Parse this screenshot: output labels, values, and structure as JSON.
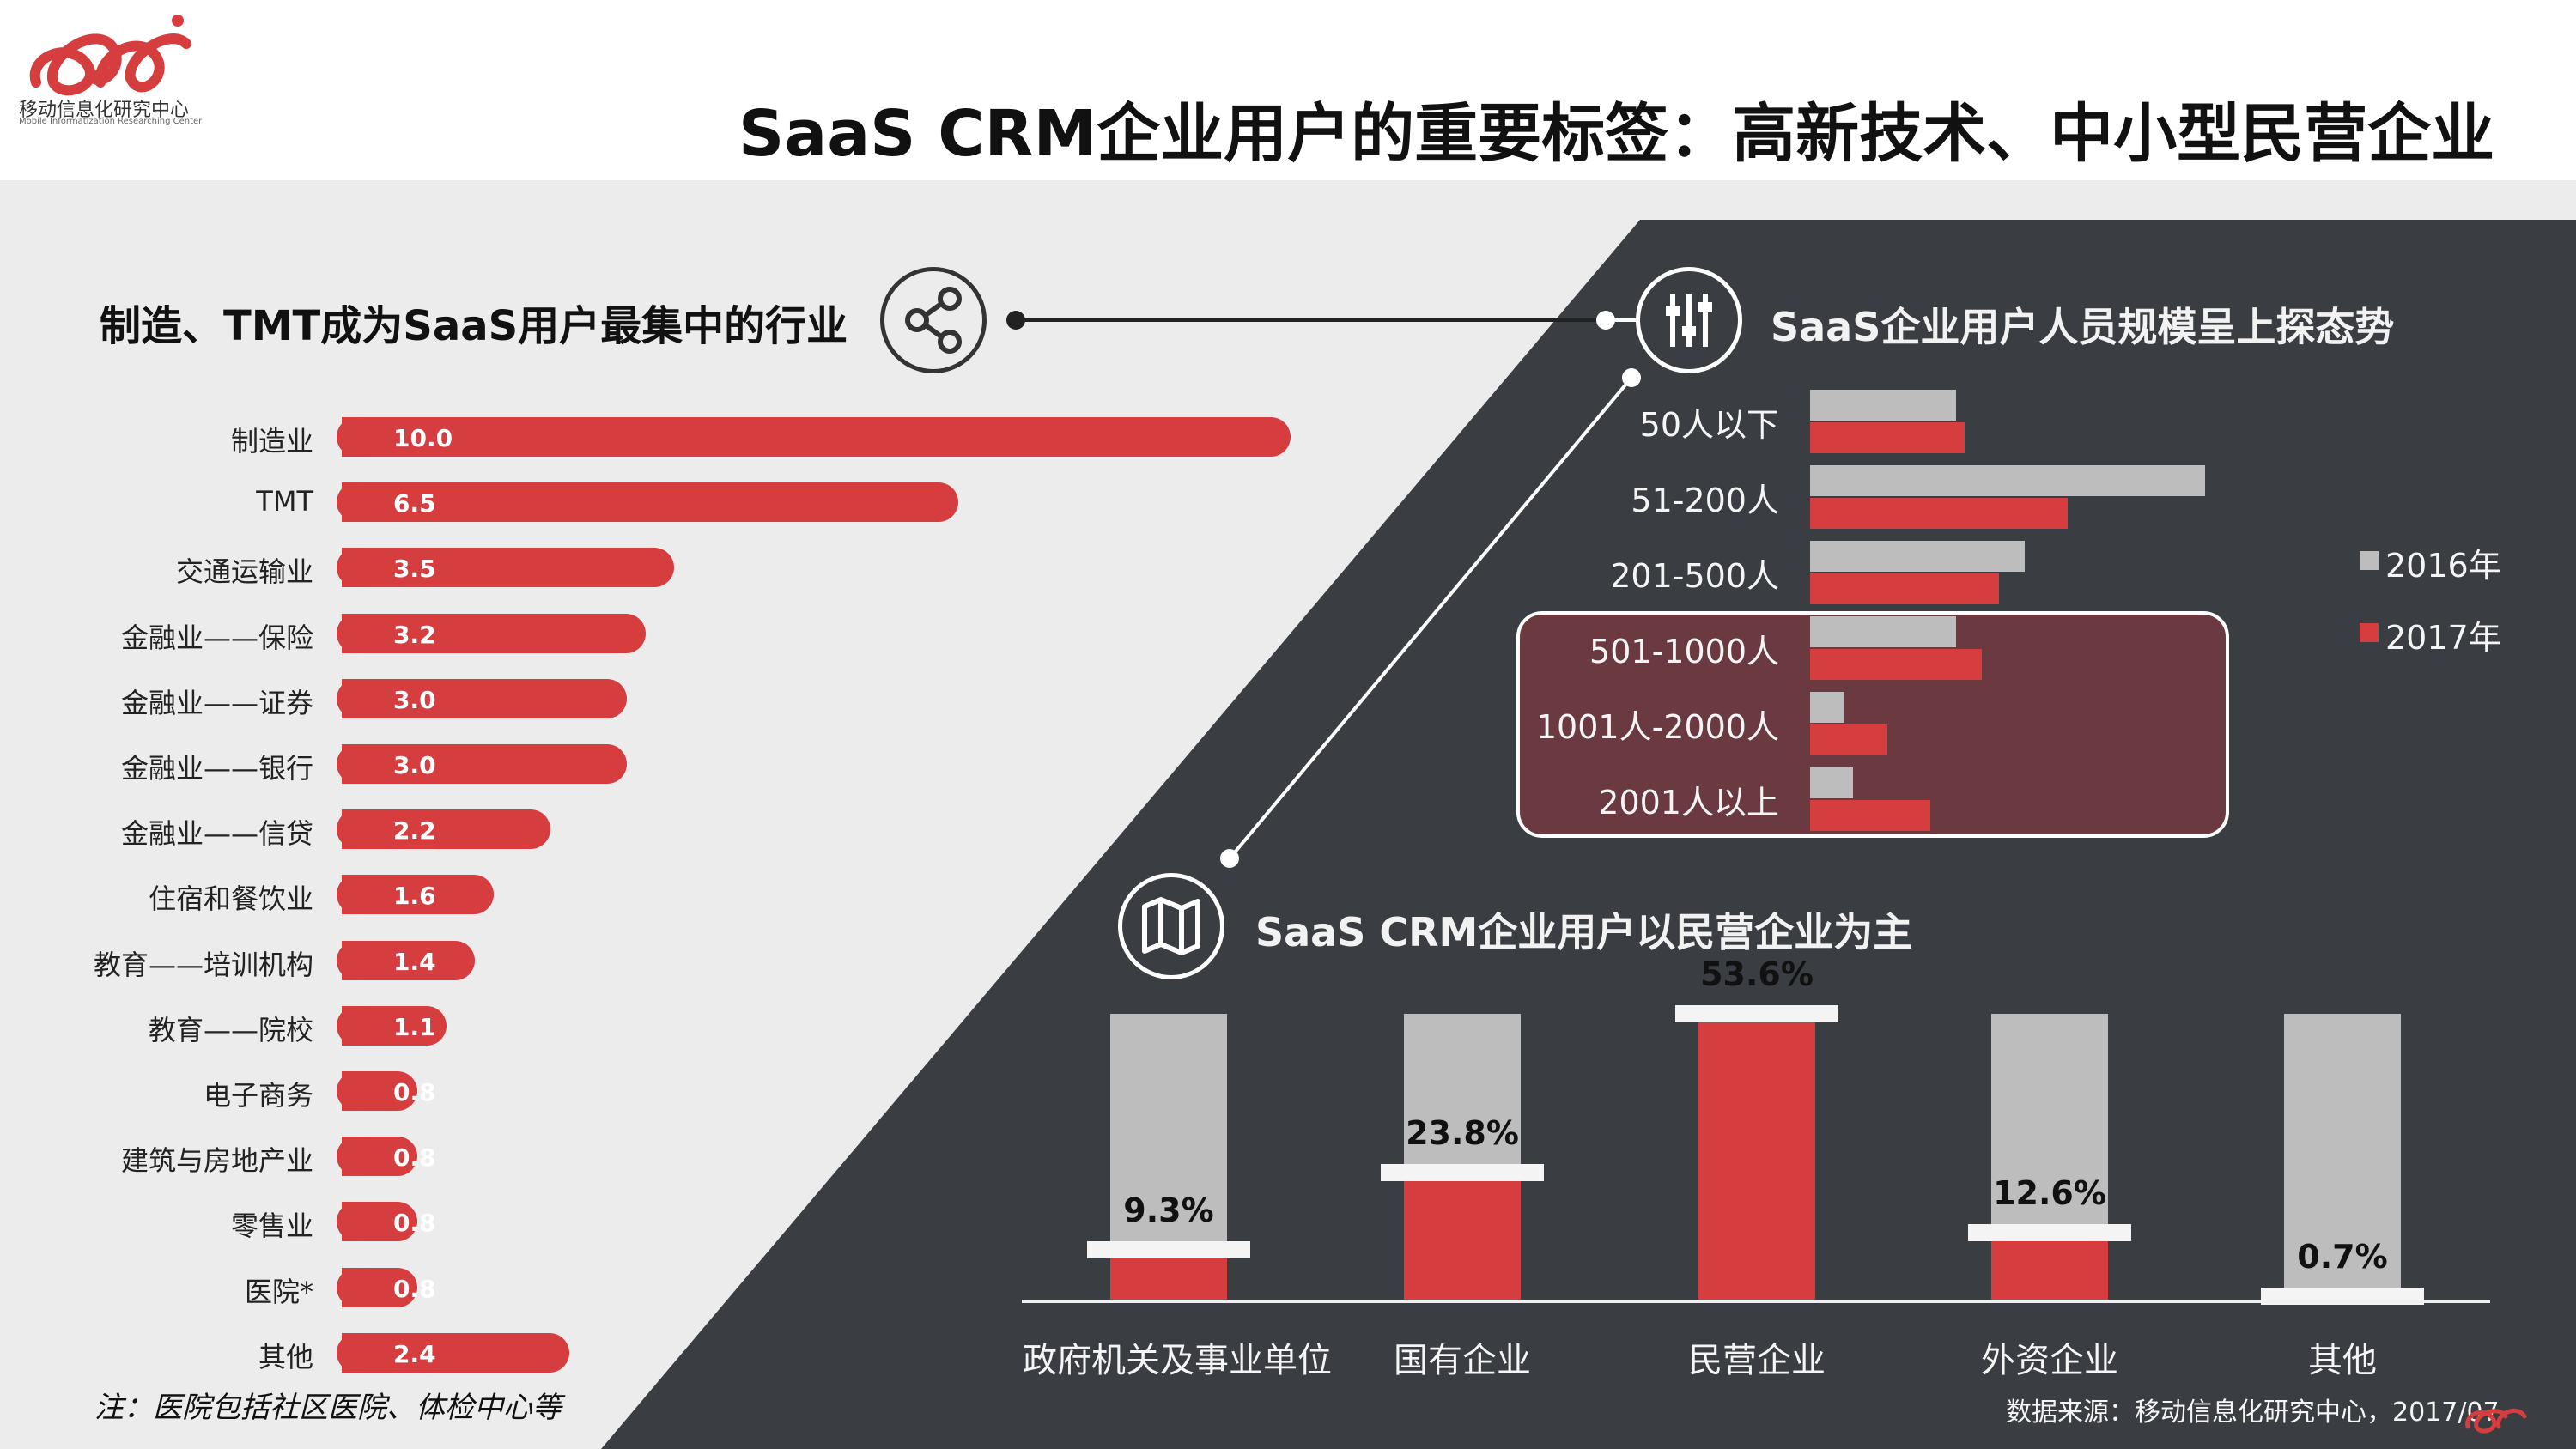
{
  "header": {
    "logo_text": "移动信息化研究中心",
    "logo_subtext": "Mobile Informatization Researching Center",
    "title": "SaaS CRM企业用户的重要标签：高新技术、中小型民营企业"
  },
  "colors": {
    "red": "#d53d3f",
    "grey": "#bdbdbd",
    "dark": "#3a3d42",
    "highlight": "#6b3a40"
  },
  "icons": {
    "left": "share-icon",
    "right": "slider-icon",
    "bottom": "map-icon"
  },
  "chart_data": [
    {
      "type": "bar",
      "orientation": "horizontal",
      "title": "制造、TMT成为SaaS用户最集中的行业",
      "categories": [
        "制造业",
        "TMT",
        "交通运输业",
        "金融业——保险",
        "金融业——证券",
        "金融业——银行",
        "金融业——信贷",
        "住宿和餐饮业",
        "教育——培训机构",
        "教育——院校",
        "电子商务",
        "建筑与房地产业",
        "零售业",
        "医院*",
        "其他"
      ],
      "values": [
        10.0,
        6.5,
        3.5,
        3.2,
        3.0,
        3.0,
        2.2,
        1.6,
        1.4,
        1.1,
        0.8,
        0.8,
        0.8,
        0.8,
        2.4
      ],
      "labels": [
        "10.0",
        "6.5",
        "3.5",
        "3.2",
        "3.0",
        "3.0",
        "2.2",
        "1.6",
        "1.4",
        "1.1",
        "0.8",
        "0.8",
        "0.8",
        "0.8",
        "2.4"
      ],
      "note": "注：医院包括社区医院、体检中心等"
    },
    {
      "type": "bar",
      "orientation": "horizontal",
      "title": "SaaS企业用户人员规模呈上探态势",
      "categories": [
        "50人以下",
        "51-200人",
        "201-500人",
        "501-1000人",
        "1001人-2000人",
        "2001人以上"
      ],
      "series": [
        {
          "name": "2016年",
          "values": [
            17,
            46,
            25,
            17,
            4,
            5
          ]
        },
        {
          "name": "2017年",
          "values": [
            18,
            30,
            22,
            20,
            9,
            14
          ]
        }
      ],
      "highlight": [
        "501-1000人",
        "1001人-2000人",
        "2001人以上"
      ],
      "legend": "right"
    },
    {
      "type": "bar",
      "title": "SaaS CRM企业用户以民营企业为主",
      "categories": [
        "政府机关及事业单位",
        "国有企业",
        "民营企业",
        "外资企业",
        "其他"
      ],
      "values": [
        9.3,
        23.8,
        53.6,
        12.6,
        0.7
      ],
      "labels": [
        "9.3%",
        "23.8%",
        "53.6%",
        "12.6%",
        "0.7%"
      ],
      "ylim": [
        0,
        53.6
      ]
    }
  ],
  "footer": {
    "source": "数据来源：移动信息化研究中心，2017/07"
  }
}
